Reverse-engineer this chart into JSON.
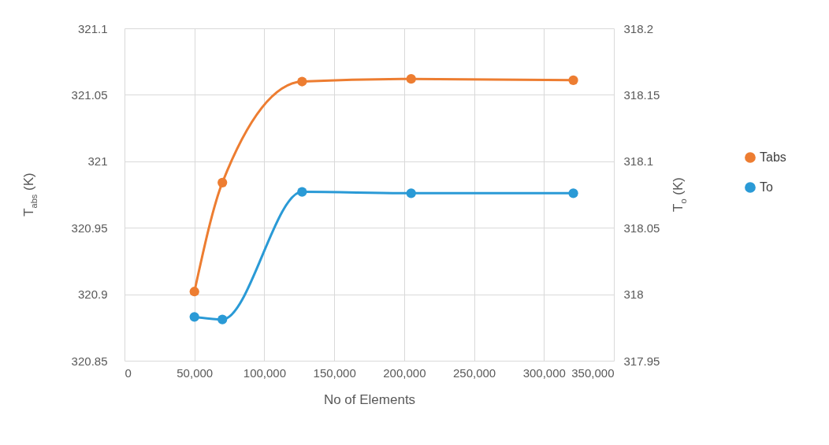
{
  "chart_data": {
    "type": "line",
    "xlabel": "No of Elements",
    "ylabel": "T$_{abs}$ (K)",
    "y2label": "T$_{o}$ (K)",
    "x": [
      50000,
      70000,
      127000,
      205000,
      321000
    ],
    "series": [
      {
        "name": "Tabs",
        "color": "#ed7d31",
        "values": [
          320.902,
          320.984,
          321.06,
          321.062,
          321.061
        ]
      },
      {
        "name": "To",
        "color": "#2a9ad6",
        "axis": "y2",
        "values": [
          317.983,
          317.981,
          318.077,
          318.076,
          318.076
        ]
      }
    ],
    "xlim": [
      0,
      350000
    ],
    "xticks": [
      0,
      {
        "value": 50000,
        "label": "50,000"
      },
      {
        "value": 100000,
        "label": "100,000"
      },
      {
        "value": 150000,
        "label": "150,000"
      },
      {
        "value": 200000,
        "label": "200,000"
      },
      {
        "value": 250000,
        "label": "250,000"
      },
      {
        "value": 300000,
        "label": "300,000"
      },
      {
        "value": 350000,
        "label": "350,000"
      }
    ],
    "ylim": [
      320.85,
      321.1
    ],
    "yticks": [
      320.85,
      320.9,
      320.95,
      321,
      321.05,
      321.1
    ],
    "y2lim": [
      317.95,
      318.2
    ],
    "y2ticks": [
      317.95,
      318,
      318.05,
      318.1,
      318.15,
      318.2
    ],
    "grid": true,
    "legend": "right",
    "marker": "circle",
    "line_style": "solid"
  }
}
